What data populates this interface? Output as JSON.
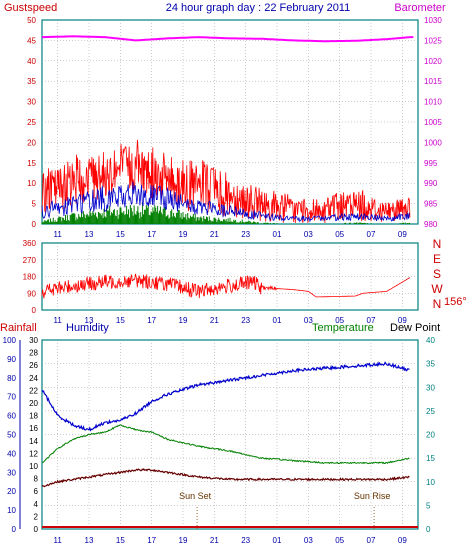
{
  "header": {
    "left": "Gustspeed",
    "center": "24 hour graph day : 22 February 2011",
    "right": "Barometer"
  },
  "colors": {
    "gust": "#ff0000",
    "wind_avg": "#0000cc",
    "wind_low": "#008000",
    "barometer": "#ff00ff",
    "direction": "#ff0000",
    "humidity": "#0000cc",
    "temperature": "#008000",
    "dew_point": "#660000",
    "rainfall": "#cc0000",
    "axis_blue": "#0000aa",
    "axis_magenta": "#cc00cc",
    "axis_green": "#008080",
    "frame": "#008080",
    "grid": "#999999"
  },
  "x_ticks": [
    "11",
    "13",
    "15",
    "17",
    "19",
    "21",
    "23",
    "01",
    "03",
    "05",
    "07",
    "09"
  ],
  "chart_data": [
    {
      "type": "line",
      "name": "wind",
      "title": "24 hour graph day : 22 February 2011",
      "left_axis_label": "Gustspeed",
      "right_axis_label": "Barometer",
      "ylim_left": [
        0,
        50
      ],
      "yticks_left": [
        "0",
        "5",
        "10",
        "15",
        "20",
        "25",
        "30",
        "35",
        "40",
        "45",
        "50"
      ],
      "ylim_right": [
        980,
        1030
      ],
      "yticks_right": [
        "980",
        "985",
        "990",
        "995",
        "1000",
        "1005",
        "1010",
        "1015",
        "1020",
        "1025",
        "1030"
      ],
      "x_hours": [
        10,
        12,
        14,
        16,
        18,
        20,
        22,
        24,
        26,
        28,
        30,
        32,
        33.5
      ],
      "gust_avg": [
        5,
        8,
        10,
        11,
        9,
        6,
        5,
        3,
        2,
        2,
        3,
        2,
        3
      ],
      "gust_max": [
        13,
        17,
        19,
        21,
        18,
        16,
        13,
        9,
        7,
        7,
        9,
        6,
        7
      ],
      "avg_speed": [
        2,
        4,
        5,
        5.5,
        5,
        3,
        2.5,
        1.5,
        1,
        1,
        1.5,
        1,
        1.5
      ],
      "low_speed": [
        0.5,
        2,
        3,
        3.5,
        3,
        1.5,
        1,
        0.3,
        0,
        0,
        0.3,
        0,
        0.3
      ],
      "barometer": [
        1025.8,
        1026.0,
        1025.8,
        1025.0,
        1025.5,
        1025.8,
        1025.5,
        1025.4,
        1025.0,
        1024.8,
        1024.9,
        1025.3,
        1025.8
      ],
      "grid": true
    },
    {
      "type": "line",
      "name": "wind direction",
      "ylim": [
        0,
        360
      ],
      "yticks": [
        "0",
        "90",
        "180",
        "270",
        "360"
      ],
      "compass_labels": [
        "N",
        "W",
        "S",
        "E",
        "N"
      ],
      "current_direction": "156°",
      "x_hours": [
        10,
        12,
        14,
        16,
        18,
        20,
        22,
        23.5,
        24,
        26,
        27,
        27.5,
        30,
        30.5,
        32,
        33,
        33.5
      ],
      "direction": [
        100,
        130,
        150,
        160,
        140,
        100,
        130,
        150,
        120,
        110,
        100,
        70,
        75,
        90,
        100,
        150,
        175
      ],
      "grid": true
    },
    {
      "type": "line",
      "name": "temperature humidity",
      "left_axis_labels": [
        "Rainfall",
        "Humidity"
      ],
      "right_axis_labels": [
        "Temperature",
        "Dew Point"
      ],
      "rain_ticks": [
        "0",
        "10",
        "20",
        "30",
        "40",
        "50",
        "60",
        "70",
        "80",
        "90",
        "100"
      ],
      "humidity_ticks": [
        "0",
        "2",
        "4",
        "6",
        "8",
        "10",
        "12",
        "14",
        "16",
        "18",
        "20",
        "22",
        "24",
        "26",
        "28",
        "30"
      ],
      "temp_ticks": [
        "0",
        "5",
        "10",
        "15",
        "20",
        "25",
        "30",
        "35",
        "40"
      ],
      "ylim_right": [
        0,
        40
      ],
      "annotations": [
        {
          "label": "Sun Set",
          "hour": 19.9
        },
        {
          "label": "Sun Rise",
          "hour": 31.2
        }
      ],
      "x_hours": [
        10,
        11,
        12,
        13,
        14,
        15,
        16,
        17,
        18,
        20,
        22,
        24,
        26,
        28,
        30,
        32,
        33.5
      ],
      "humidity_line": [
        29.5,
        24,
        22,
        21,
        22.5,
        23,
        24.5,
        27,
        28.5,
        30.5,
        31.5,
        32.5,
        33.5,
        34,
        34.5,
        35,
        33.5
      ],
      "temperature": [
        14,
        17,
        19,
        20,
        20.5,
        22,
        21,
        20.5,
        19,
        17.5,
        16.5,
        15,
        14.5,
        14,
        14,
        14,
        15
      ],
      "dew_point": [
        9,
        10,
        10.5,
        11,
        11.5,
        12,
        12.5,
        12.5,
        12,
        11,
        10.5,
        10.5,
        10.5,
        10.5,
        10.5,
        10.5,
        11
      ],
      "rainfall": [
        0,
        0
      ],
      "grid": true
    }
  ]
}
